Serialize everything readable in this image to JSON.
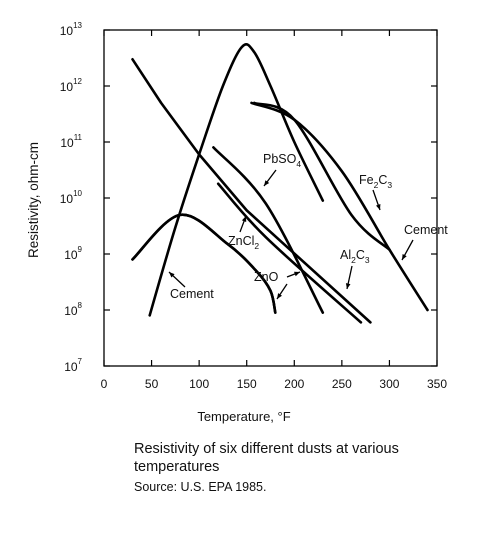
{
  "chart_data": {
    "type": "line",
    "xlabel": "Temperature, °F",
    "ylabel": "Resistivity, ohm-cm",
    "xlim": [
      0,
      350
    ],
    "ylim": [
      10000000,
      10000000000000
    ],
    "yscale": "log",
    "xticks": [
      "0",
      "50",
      "100",
      "150",
      "200",
      "250",
      "300",
      "350"
    ],
    "yticks": [
      {
        "base": "10",
        "exp": "7"
      },
      {
        "base": "10",
        "exp": "8"
      },
      {
        "base": "10",
        "exp": "9"
      },
      {
        "base": "10",
        "exp": "10"
      },
      {
        "base": "10",
        "exp": "11"
      },
      {
        "base": "10",
        "exp": "12"
      },
      {
        "base": "10",
        "exp": "13"
      }
    ],
    "grid": false,
    "series": [
      {
        "name": "Cement",
        "x": [
          30,
          80,
          130,
          160,
          175,
          180
        ],
        "y": [
          800000000,
          5000000000,
          1500000000,
          500000000,
          220000000,
          90000000
        ]
      },
      {
        "name": "Cement",
        "x": [
          48,
          75,
          100,
          125,
          145,
          158,
          175,
          200,
          230
        ],
        "y": [
          80000000,
          3000000000,
          60000000000,
          1000000000000,
          5000000000000,
          4000000000000,
          1000000000000,
          100000000000,
          9000000000
        ]
      },
      {
        "name": "Cement",
        "x": [
          155,
          200,
          250,
          300,
          340
        ],
        "y": [
          500000000000,
          250000000000,
          30000000000,
          1200000000,
          100000000
        ]
      },
      {
        "name": "PbSO4",
        "x": [
          115,
          170,
          230
        ],
        "y": [
          80000000000,
          8000000000,
          90000000
        ]
      },
      {
        "name": "ZnCl2",
        "x": [
          120,
          170,
          270
        ],
        "y": [
          18000000000,
          2000000000,
          60000000
        ]
      },
      {
        "name": "ZnO",
        "x": [
          30,
          60,
          100,
          150,
          280
        ],
        "y": [
          3000000000000,
          500000000000,
          60000000000,
          6000000000,
          60000000
        ]
      },
      {
        "name": "Al2C3",
        "x": [
          30,
          80,
          130,
          160,
          175,
          180
        ],
        "y": [
          800000000,
          5000000000,
          1500000000,
          500000000,
          220000000,
          90000000
        ]
      },
      {
        "name": "Fe2C3",
        "x": [
          158,
          200,
          260,
          300
        ],
        "y": [
          500000000000,
          250000000000,
          5000000000,
          1200000000
        ]
      }
    ],
    "labels": [
      {
        "text": "PbSO",
        "sub": "4",
        "sub_kind": "sub"
      },
      {
        "text": "Fe",
        "sub": "2",
        "text2": "C",
        "sub2": "3"
      },
      {
        "text": "Cement"
      },
      {
        "text": "ZnCl",
        "sub": "2"
      },
      {
        "text": "Al",
        "sub": "2",
        "text2": "C",
        "sub2": "3"
      },
      {
        "text": "ZnO"
      },
      {
        "text": "Cement"
      }
    ]
  },
  "caption": {
    "main": "Resistivity of six different dusts at various temperatures",
    "source": "Source: U.S. EPA 1985."
  },
  "colors": {
    "line": "#000000",
    "text": "#111111"
  }
}
